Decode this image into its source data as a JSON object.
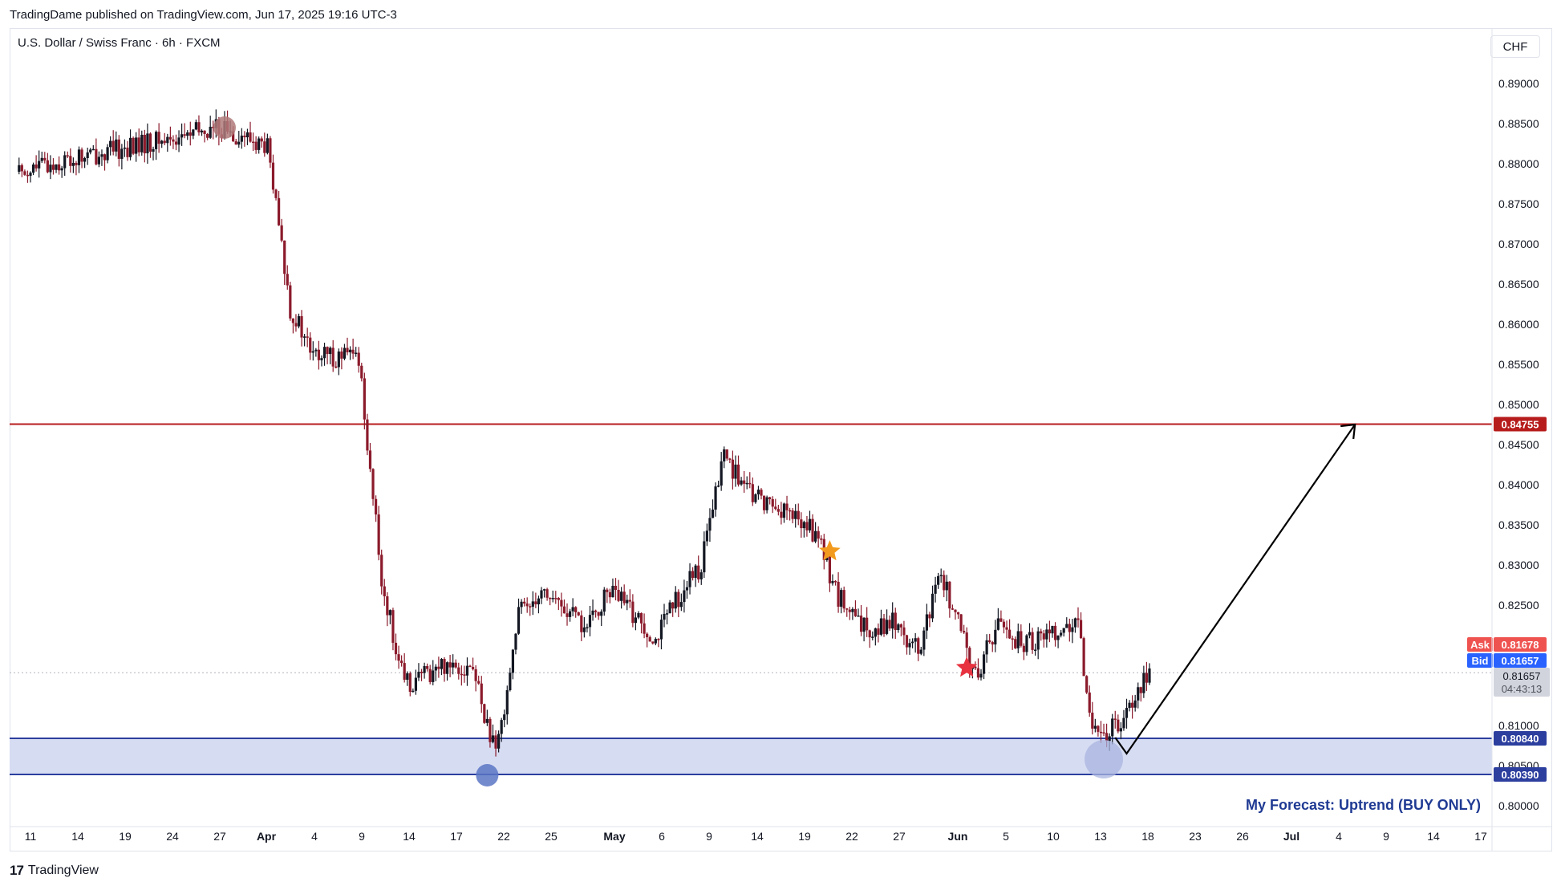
{
  "header": {
    "published": "TradingDame published on TradingView.com, Jun 17, 2025 19:16 UTC-3"
  },
  "footer": {
    "logo": "17",
    "brand": "TradingView"
  },
  "chart_data": {
    "type": "candlestick",
    "symbol": "U.S. Dollar / Swiss Franc · 6h · FXCM",
    "currency": "CHF",
    "ylim": [
      0.7975,
      0.8935
    ],
    "y_ticks": [
      "0.89000",
      "0.88500",
      "0.88000",
      "0.87500",
      "0.87000",
      "0.86500",
      "0.86000",
      "0.85500",
      "0.85000",
      "0.84500",
      "0.84000",
      "0.83500",
      "0.83000",
      "0.82500",
      "0.82000",
      "0.81500",
      "0.81000",
      "0.80500",
      "0.80000"
    ],
    "y_tick_values": [
      0.89,
      0.885,
      0.88,
      0.875,
      0.87,
      0.865,
      0.86,
      0.855,
      0.85,
      0.845,
      0.84,
      0.835,
      0.83,
      0.825,
      0.82,
      0.815,
      0.81,
      0.805,
      0.8
    ],
    "x_ticks": [
      "11",
      "14",
      "19",
      "24",
      "27",
      "Apr",
      "4",
      "9",
      "14",
      "17",
      "22",
      "25",
      "May",
      "6",
      "9",
      "14",
      "19",
      "22",
      "27",
      "Jun",
      "5",
      "10",
      "13",
      "18",
      "23",
      "26",
      "Jul",
      "4",
      "9",
      "14",
      "17"
    ],
    "x_bold": [
      "Apr",
      "May",
      "Jun",
      "Jul"
    ],
    "key_points": [
      {
        "date": "Mar 10",
        "price": 0.879
      },
      {
        "date": "Mar 28",
        "price": 0.8845
      },
      {
        "date": "Apr 1",
        "price": 0.882
      },
      {
        "date": "Apr 3",
        "price": 0.862
      },
      {
        "date": "Apr 5",
        "price": 0.856
      },
      {
        "date": "Apr 9",
        "price": 0.856
      },
      {
        "date": "Apr 11",
        "price": 0.828
      },
      {
        "date": "Apr 13",
        "price": 0.815
      },
      {
        "date": "Apr 17",
        "price": 0.818
      },
      {
        "date": "Apr 19",
        "price": 0.817
      },
      {
        "date": "Apr 21",
        "price": 0.806
      },
      {
        "date": "Apr 23",
        "price": 0.824
      },
      {
        "date": "Apr 25",
        "price": 0.827
      },
      {
        "date": "Apr 29",
        "price": 0.822
      },
      {
        "date": "May 1",
        "price": 0.827
      },
      {
        "date": "May 5",
        "price": 0.821
      },
      {
        "date": "May 7",
        "price": 0.826
      },
      {
        "date": "May 9",
        "price": 0.83
      },
      {
        "date": "May 11",
        "price": 0.844
      },
      {
        "date": "May 13",
        "price": 0.839
      },
      {
        "date": "May 16",
        "price": 0.837
      },
      {
        "date": "May 19",
        "price": 0.834
      },
      {
        "date": "May 21",
        "price": 0.826
      },
      {
        "date": "May 23",
        "price": 0.822
      },
      {
        "date": "May 26",
        "price": 0.823
      },
      {
        "date": "May 28",
        "price": 0.819
      },
      {
        "date": "May 30",
        "price": 0.829
      },
      {
        "date": "Jun 2",
        "price": 0.816
      },
      {
        "date": "Jun 4",
        "price": 0.823
      },
      {
        "date": "Jun 6",
        "price": 0.82
      },
      {
        "date": "Jun 9",
        "price": 0.822
      },
      {
        "date": "Jun 11",
        "price": 0.822
      },
      {
        "date": "Jun 12",
        "price": 0.812
      },
      {
        "date": "Jun 13",
        "price": 0.808
      },
      {
        "date": "Jun 15",
        "price": 0.8115
      },
      {
        "date": "Jun 17",
        "price": 0.8166
      }
    ],
    "resistance": {
      "value": 0.84755,
      "label": "0.84755",
      "color": "#b71c1c"
    },
    "support_zone": {
      "top": 0.8084,
      "bottom": 0.8039,
      "top_label": "0.80840",
      "bottom_label": "0.80390",
      "color": "#2c3e9e",
      "fill": "#d6dcf2"
    },
    "ask": {
      "label": "Ask",
      "value": "0.81678",
      "color": "#ef5350"
    },
    "bid": {
      "label": "Bid",
      "value": "0.81657",
      "color": "#2962ff"
    },
    "last": {
      "value": "0.81657",
      "countdown": "04:43:13"
    },
    "forecast_path": [
      {
        "date": "Jun 14",
        "price": 0.8085
      },
      {
        "date": "Jun 15",
        "price": 0.8065
      },
      {
        "date": "Jul 5",
        "price": 0.8475
      }
    ],
    "markers": [
      {
        "type": "circle",
        "date": "Mar 28",
        "price": 0.8845,
        "color": "#b07a7a"
      },
      {
        "type": "circle",
        "date": "Apr 20",
        "price": 0.8038,
        "color": "#5b76c4"
      },
      {
        "type": "circle",
        "date": "Jun 13",
        "price": 0.8058,
        "color": "#a9b6e0"
      },
      {
        "type": "star",
        "date": "May 20",
        "price": 0.8317,
        "color": "#f29a1d"
      },
      {
        "type": "star",
        "date": "Jun 1",
        "price": 0.8172,
        "color": "#e8323f"
      }
    ],
    "annotation": "My Forecast: Uptrend (BUY ONLY)",
    "colors": {
      "up": "#131722",
      "down": "#8b1a2b"
    }
  }
}
